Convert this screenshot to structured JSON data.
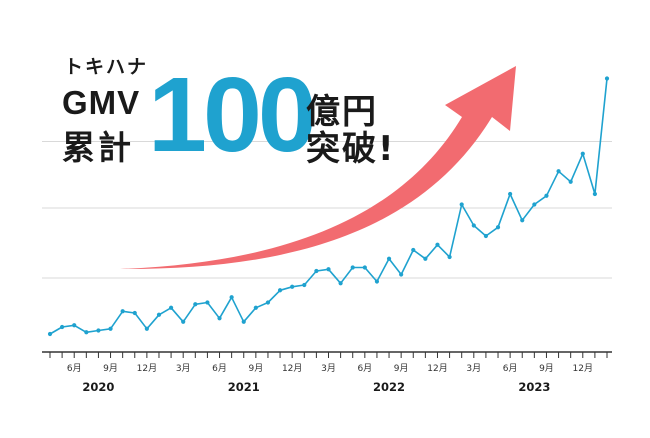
{
  "headline": {
    "brand": "トキハナ",
    "metric": "GMV",
    "cumulative": "累計",
    "amount": "100",
    "unit": "億円",
    "exclaim": "突破!"
  },
  "colors": {
    "line": "#1fa2cf",
    "arrow": "#f26b70",
    "grid": "#d9d9d9",
    "axis": "#333333",
    "amount": "#1fa2cf"
  },
  "chart_data": {
    "type": "line",
    "title": "",
    "xlabel": "",
    "ylabel": "",
    "grid": true,
    "y_axis_labels_shown": false,
    "x": [
      "2020-04",
      "2020-05",
      "2020-06",
      "2020-07",
      "2020-08",
      "2020-09",
      "2020-10",
      "2020-11",
      "2020-12",
      "2021-01",
      "2021-02",
      "2021-03",
      "2021-04",
      "2021-05",
      "2021-06",
      "2021-07",
      "2021-08",
      "2021-09",
      "2021-10",
      "2021-11",
      "2021-12",
      "2022-01",
      "2022-02",
      "2022-03",
      "2022-04",
      "2022-05",
      "2022-06",
      "2022-07",
      "2022-08",
      "2022-09",
      "2022-10",
      "2022-11",
      "2022-12",
      "2023-01",
      "2023-02",
      "2023-03",
      "2023-04",
      "2023-05",
      "2023-06",
      "2023-07",
      "2023-08",
      "2023-09",
      "2023-10",
      "2023-11",
      "2023-12",
      "2024-01",
      "2024-02"
    ],
    "series": [
      {
        "values": [
          8,
          12,
          13,
          9,
          10,
          11,
          21,
          20,
          11,
          19,
          23,
          15,
          25,
          26,
          17,
          29,
          15,
          23,
          26,
          33,
          35,
          36,
          44,
          45,
          37,
          46,
          46,
          38,
          51,
          42,
          56,
          51,
          59,
          52,
          82,
          70,
          64,
          69,
          88,
          73,
          82,
          87,
          101,
          95,
          111,
          88,
          154
        ]
      }
    ],
    "ylim": [
      0,
      160
    ],
    "gridlines": [
      0,
      40,
      80,
      118
    ],
    "x_tick_labels": [
      {
        "x": "2020-06",
        "label": "6月"
      },
      {
        "x": "2020-09",
        "label": "9月"
      },
      {
        "x": "2020-12",
        "label": "12月"
      },
      {
        "x": "2021-03",
        "label": "3月"
      },
      {
        "x": "2021-06",
        "label": "6月"
      },
      {
        "x": "2021-09",
        "label": "9月"
      },
      {
        "x": "2021-12",
        "label": "12月"
      },
      {
        "x": "2022-03",
        "label": "3月"
      },
      {
        "x": "2022-06",
        "label": "6月"
      },
      {
        "x": "2022-09",
        "label": "9月"
      },
      {
        "x": "2022-12",
        "label": "12月"
      },
      {
        "x": "2023-03",
        "label": "3月"
      },
      {
        "x": "2023-06",
        "label": "6月"
      },
      {
        "x": "2023-09",
        "label": "9月"
      },
      {
        "x": "2023-12",
        "label": "12月"
      }
    ],
    "year_labels": [
      {
        "x": "2020-08",
        "label": "2020"
      },
      {
        "x": "2021-08",
        "label": "2021"
      },
      {
        "x": "2022-08",
        "label": "2022"
      },
      {
        "x": "2023-08",
        "label": "2023"
      }
    ]
  }
}
